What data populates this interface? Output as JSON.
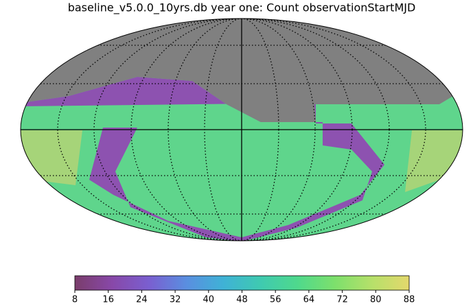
{
  "chart_data": {
    "type": "skymap",
    "title": "baseline_v5.0.0_10yrs.db year one: Count observationStartMJD",
    "clim": [
      8,
      88
    ],
    "cticks": [
      8,
      16,
      24,
      32,
      40,
      48,
      56,
      64,
      72,
      80,
      88
    ],
    "colormap": [
      "#7a3d6b",
      "#8848a8",
      "#7a5fd0",
      "#5a8ee0",
      "#3fb2d6",
      "#3fcab0",
      "#4fd98c",
      "#7de06c",
      "#b6e06a",
      "#e4d86c"
    ],
    "masked_color": "#808080"
  }
}
